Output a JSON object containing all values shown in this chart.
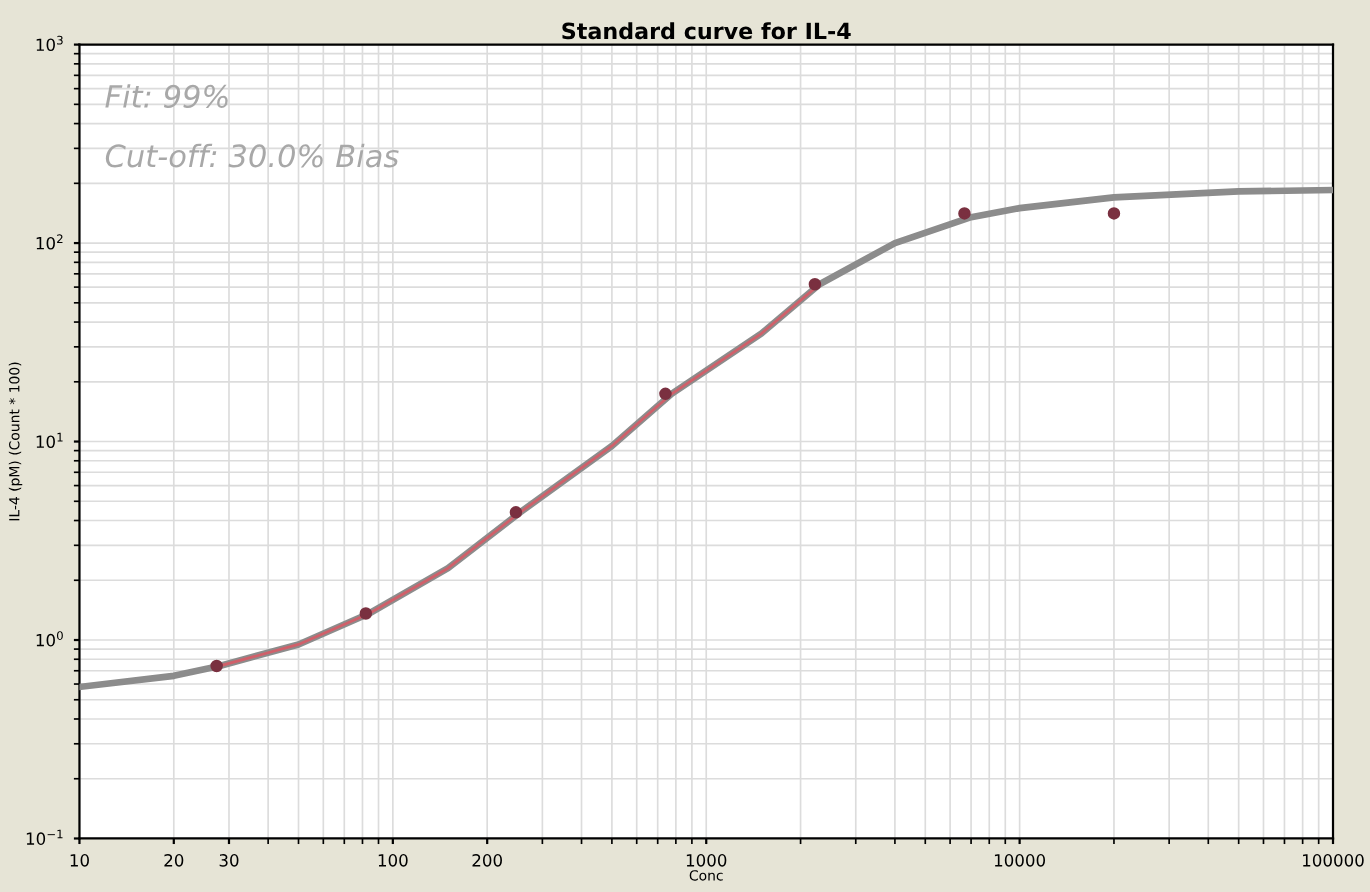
{
  "chart_data": {
    "type": "line",
    "title": "Standard curve for IL-4",
    "xlabel": "Conc",
    "ylabel": "IL-4 (pM) (Count * 100)",
    "annotations": [
      "Fit: 99%",
      "Cut-off: 30.0% Bias"
    ],
    "log": "xy",
    "grid": true,
    "xlim": [
      10,
      100000
    ],
    "ylim": [
      0.1,
      1000
    ],
    "xticks": [
      10,
      20,
      30,
      100,
      200,
      1000,
      10000,
      100000
    ],
    "yticks": [
      {
        "value": 0.1,
        "label": "10$^{−1}$"
      },
      {
        "value": 1,
        "label": "10$^{0}$"
      },
      {
        "value": 10,
        "label": "10$^{1}$"
      },
      {
        "value": 100,
        "label": "10$^{2}$"
      },
      {
        "value": 1000,
        "label": "10$^{3}$"
      }
    ],
    "series": [
      {
        "color": "#8c8c8c",
        "x": [
          10,
          20,
          28,
          50,
          84,
          150,
          255,
          500,
          776,
          1500,
          2300,
          4000,
          7000,
          10000,
          20000,
          50000,
          100000
        ],
        "values": [
          0.58,
          0.66,
          0.74,
          0.95,
          1.36,
          2.3,
          4.4,
          9.5,
          17.4,
          35,
          62,
          100,
          135,
          150,
          170,
          182,
          185
        ]
      },
      {
        "color": "#d0606a",
        "x": [
          28,
          50,
          84,
          150,
          255,
          500,
          776,
          1500,
          2300
        ],
        "values": [
          0.74,
          0.95,
          1.36,
          2.3,
          4.4,
          9.5,
          17.4,
          35,
          62
        ]
      },
      {
        "type": "scatter",
        "marker": "circle",
        "color": "#7a3040",
        "x": [
          27.4,
          82,
          247,
          741,
          2222,
          6667,
          20000
        ],
        "values": [
          0.74,
          1.36,
          4.4,
          17.4,
          62,
          141,
          141
        ]
      }
    ]
  }
}
